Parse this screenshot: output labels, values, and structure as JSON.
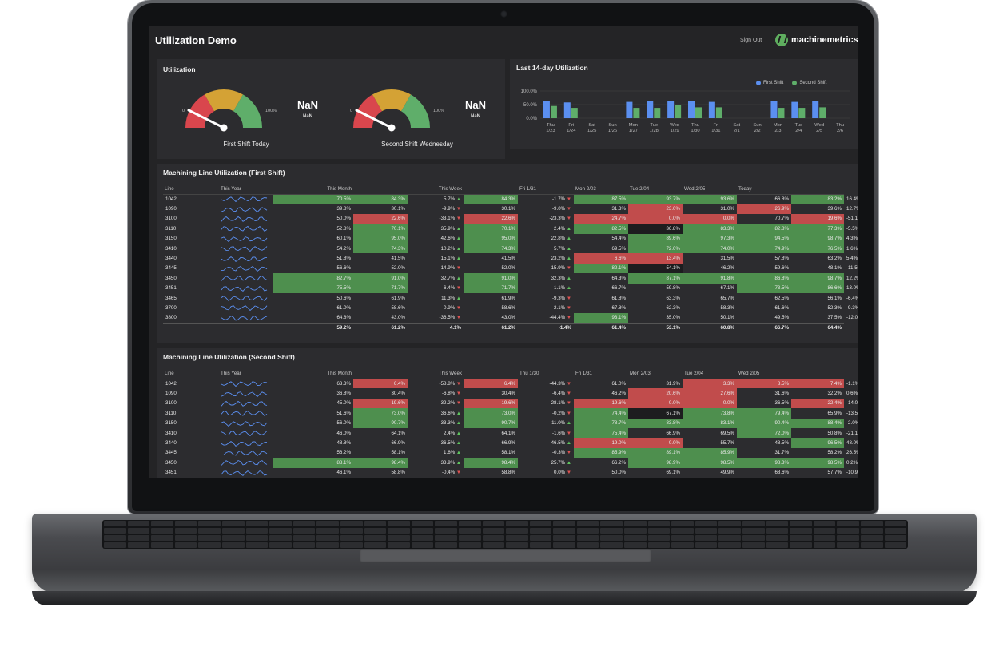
{
  "app": {
    "title": "Utilization Demo",
    "sign_out": "Sign Out",
    "brand": "machinemetrics"
  },
  "gauges": {
    "title": "Utilization",
    "min_label": "0",
    "max_label": "100%",
    "items": [
      {
        "label": "First Shift Today",
        "value": "NaN",
        "sub": "NaN"
      },
      {
        "label": "Second Shift Wednesday",
        "value": "NaN",
        "sub": "NaN"
      }
    ],
    "colors": {
      "low": "#d9464d",
      "mid": "#d4a235",
      "high": "#5fae6a"
    }
  },
  "chart_data": {
    "type": "bar",
    "title": "Last 14-day Utilization",
    "y_ticks": [
      "100.0%",
      "50.0%",
      "0.0%"
    ],
    "ylim": [
      0,
      100
    ],
    "legend": "top-right",
    "categories": [
      [
        "Thu",
        "1/23"
      ],
      [
        "Fri",
        "1/24"
      ],
      [
        "Sat",
        "1/25"
      ],
      [
        "Sun",
        "1/26"
      ],
      [
        "Mon",
        "1/27"
      ],
      [
        "Tue",
        "1/28"
      ],
      [
        "Wed",
        "1/29"
      ],
      [
        "Thu",
        "1/30"
      ],
      [
        "Fri",
        "1/31"
      ],
      [
        "Sat",
        "2/1"
      ],
      [
        "Sun",
        "2/2"
      ],
      [
        "Mon",
        "2/3"
      ],
      [
        "Tue",
        "2/4"
      ],
      [
        "Wed",
        "2/5"
      ],
      [
        "Thu",
        "2/6"
      ]
    ],
    "series": [
      {
        "name": "First Shift",
        "color": "#5b8ff0",
        "values": [
          62,
          58,
          0,
          0,
          60,
          62,
          62,
          64,
          60,
          0,
          0,
          62,
          60,
          62,
          0
        ]
      },
      {
        "name": "Second Shift",
        "color": "#5fae6a",
        "values": [
          45,
          38,
          0,
          0,
          38,
          38,
          48,
          40,
          40,
          0,
          0,
          38,
          38,
          40,
          0
        ]
      }
    ]
  },
  "first": {
    "title": "Machining Line Utilization (First Shift)",
    "headers": [
      "Line",
      "This Year",
      "This Month",
      "",
      "This Week",
      "",
      "Fri 1/31",
      "Mon 2/03",
      "Tue 2/04",
      "Wed 2/05",
      "Today",
      ""
    ],
    "rows": [
      {
        "line": "1042",
        "year": "70.5%",
        "yc": "g",
        "month": "84.3%",
        "mc": "g",
        "mdelta": "5.7%",
        "md": "up",
        "week": "84.3%",
        "wc": "g",
        "wdelta": "-1.7%",
        "wd": "dn",
        "d1": "87.5%",
        "c1": "g",
        "d2": "93.7%",
        "c2": "g",
        "d3": "93.6%",
        "c3": "g",
        "d4": "66.8%",
        "c4": "",
        "today": "83.2%",
        "tc": "g",
        "tdelta": "16.4%",
        "td": "up"
      },
      {
        "line": "1090",
        "year": "39.8%",
        "yc": "",
        "month": "30.1%",
        "mc": "",
        "mdelta": "-9.9%",
        "md": "dn",
        "week": "30.1%",
        "wc": "",
        "wdelta": "-9.0%",
        "wd": "dn",
        "d1": "31.3%",
        "c1": "",
        "d2": "23.0%",
        "c2": "r",
        "d3": "31.0%",
        "c3": "",
        "d4": "26.9%",
        "c4": "r",
        "today": "39.6%",
        "tc": "",
        "tdelta": "12.7%",
        "td": "up"
      },
      {
        "line": "3100",
        "year": "50.0%",
        "yc": "",
        "month": "22.6%",
        "mc": "r",
        "mdelta": "-33.1%",
        "md": "dn",
        "week": "22.6%",
        "wc": "r",
        "wdelta": "-23.3%",
        "wd": "dn",
        "d1": "24.7%",
        "c1": "r",
        "d2": "0.0%",
        "c2": "r",
        "d3": "0.0%",
        "c3": "r",
        "d4": "70.7%",
        "c4": "",
        "today": "19.6%",
        "tc": "r",
        "tdelta": "-51.1%",
        "td": "dn"
      },
      {
        "line": "3110",
        "year": "52.8%",
        "yc": "",
        "month": "70.1%",
        "mc": "g",
        "mdelta": "35.9%",
        "md": "up",
        "week": "70.1%",
        "wc": "g",
        "wdelta": "2.4%",
        "wd": "up",
        "d1": "82.5%",
        "c1": "g",
        "d2": "36.8%",
        "c2": "k",
        "d3": "83.3%",
        "c3": "g",
        "d4": "82.8%",
        "c4": "g",
        "today": "77.3%",
        "tc": "g",
        "tdelta": "-5.5%",
        "td": "dn"
      },
      {
        "line": "3150",
        "year": "60.1%",
        "yc": "",
        "month": "95.0%",
        "mc": "g",
        "mdelta": "42.6%",
        "md": "up",
        "week": "95.0%",
        "wc": "g",
        "wdelta": "22.8%",
        "wd": "up",
        "d1": "54.4%",
        "c1": "",
        "d2": "89.6%",
        "c2": "g",
        "d3": "97.3%",
        "c3": "g",
        "d4": "94.5%",
        "c4": "g",
        "today": "98.7%",
        "tc": "g",
        "tdelta": "4.3%",
        "td": "up"
      },
      {
        "line": "3410",
        "year": "54.2%",
        "yc": "",
        "month": "74.3%",
        "mc": "g",
        "mdelta": "10.2%",
        "md": "up",
        "week": "74.3%",
        "wc": "g",
        "wdelta": "5.7%",
        "wd": "up",
        "d1": "69.5%",
        "c1": "",
        "d2": "72.0%",
        "c2": "g",
        "d3": "74.0%",
        "c3": "g",
        "d4": "74.9%",
        "c4": "g",
        "today": "76.5%",
        "tc": "g",
        "tdelta": "1.6%",
        "td": "up"
      },
      {
        "line": "3440",
        "year": "51.8%",
        "yc": "",
        "month": "41.5%",
        "mc": "",
        "mdelta": "15.1%",
        "md": "up",
        "week": "41.5%",
        "wc": "",
        "wdelta": "23.2%",
        "wd": "up",
        "d1": "6.6%",
        "c1": "r",
        "d2": "13.4%",
        "c2": "r",
        "d3": "31.5%",
        "c3": "",
        "d4": "57.8%",
        "c4": "",
        "today": "63.2%",
        "tc": "",
        "tdelta": "5.4%",
        "td": "up"
      },
      {
        "line": "3445",
        "year": "56.6%",
        "yc": "",
        "month": "52.0%",
        "mc": "",
        "mdelta": "-14.9%",
        "md": "dn",
        "week": "52.0%",
        "wc": "",
        "wdelta": "-15.9%",
        "wd": "dn",
        "d1": "82.1%",
        "c1": "g",
        "d2": "54.1%",
        "c2": "k",
        "d3": "46.2%",
        "c3": "",
        "d4": "59.6%",
        "c4": "",
        "today": "48.1%",
        "tc": "",
        "tdelta": "-11.5%",
        "td": "dn"
      },
      {
        "line": "3450",
        "year": "82.7%",
        "yc": "g",
        "month": "91.0%",
        "mc": "g",
        "mdelta": "32.7%",
        "md": "up",
        "week": "91.0%",
        "wc": "g",
        "wdelta": "32.3%",
        "wd": "up",
        "d1": "64.3%",
        "c1": "",
        "d2": "87.1%",
        "c2": "g",
        "d3": "91.8%",
        "c3": "g",
        "d4": "86.8%",
        "c4": "g",
        "today": "98.7%",
        "tc": "g",
        "tdelta": "12.2%",
        "td": "up"
      },
      {
        "line": "3451",
        "year": "75.5%",
        "yc": "g",
        "month": "71.7%",
        "mc": "g",
        "mdelta": "-6.4%",
        "md": "dn",
        "week": "71.7%",
        "wc": "g",
        "wdelta": "1.1%",
        "wd": "up",
        "d1": "66.7%",
        "c1": "",
        "d2": "59.8%",
        "c2": "",
        "d3": "67.1%",
        "c3": "",
        "d4": "73.5%",
        "c4": "g",
        "today": "86.6%",
        "tc": "g",
        "tdelta": "13.0%",
        "td": "up"
      },
      {
        "line": "3465",
        "year": "50.6%",
        "yc": "",
        "month": "61.9%",
        "mc": "",
        "mdelta": "11.3%",
        "md": "up",
        "week": "61.9%",
        "wc": "",
        "wdelta": "-9.3%",
        "wd": "dn",
        "d1": "61.8%",
        "c1": "",
        "d2": "63.3%",
        "c2": "",
        "d3": "65.7%",
        "c3": "",
        "d4": "62.5%",
        "c4": "",
        "today": "56.1%",
        "tc": "",
        "tdelta": "-6.4%",
        "td": "dn"
      },
      {
        "line": "3700",
        "year": "61.0%",
        "yc": "",
        "month": "58.6%",
        "mc": "",
        "mdelta": "-0.9%",
        "md": "dn",
        "week": "58.6%",
        "wc": "",
        "wdelta": "-2.1%",
        "wd": "dn",
        "d1": "67.8%",
        "c1": "",
        "d2": "62.3%",
        "c2": "",
        "d3": "58.3%",
        "c3": "",
        "d4": "61.6%",
        "c4": "",
        "today": "52.3%",
        "tc": "",
        "tdelta": "-9.3%",
        "td": "dn"
      },
      {
        "line": "3800",
        "year": "64.8%",
        "yc": "",
        "month": "43.0%",
        "mc": "",
        "mdelta": "-36.5%",
        "md": "dn",
        "week": "43.0%",
        "wc": "",
        "wdelta": "-44.4%",
        "wd": "dn",
        "d1": "93.1%",
        "c1": "g",
        "d2": "35.0%",
        "c2": "",
        "d3": "50.1%",
        "c3": "",
        "d4": "49.5%",
        "c4": "",
        "today": "37.5%",
        "tc": "",
        "tdelta": "-12.0%",
        "td": "dn"
      }
    ],
    "totals": {
      "year": "59.2%",
      "month": "61.2%",
      "mdelta": "4.1%",
      "week": "61.2%",
      "wdelta": "-1.4%",
      "d1": "61.4%",
      "d2": "53.1%",
      "d3": "60.8%",
      "d4": "66.7%",
      "today": "64.4%"
    }
  },
  "second": {
    "title": "Machining Line Utilization (Second Shift)",
    "headers": [
      "Line",
      "This Year",
      "This Month",
      "",
      "This Week",
      "",
      "Thu 1/30",
      "Fri 1/31",
      "Mon 2/03",
      "Tue 2/04",
      "Wed 2/05",
      ""
    ],
    "rows": [
      {
        "line": "1042",
        "year": "63.3%",
        "yc": "",
        "month": "6.4%",
        "mc": "r",
        "mdelta": "-58.8%",
        "md": "dn",
        "week": "6.4%",
        "wc": "r",
        "wdelta": "-44.3%",
        "wd": "dn",
        "d1": "61.0%",
        "c1": "",
        "d2": "31.9%",
        "c2": "",
        "d3": "3.3%",
        "c3": "r",
        "d4": "8.5%",
        "c4": "r",
        "today": "7.4%",
        "tc": "r",
        "tdelta": "-1.1%",
        "td": "dn"
      },
      {
        "line": "1090",
        "year": "36.8%",
        "yc": "",
        "month": "30.4%",
        "mc": "",
        "mdelta": "-6.8%",
        "md": "dn",
        "week": "30.4%",
        "wc": "",
        "wdelta": "-6.4%",
        "wd": "dn",
        "d1": "46.2%",
        "c1": "",
        "d2": "20.6%",
        "c2": "r",
        "d3": "27.6%",
        "c3": "r",
        "d4": "31.6%",
        "c4": "",
        "today": "32.2%",
        "tc": "",
        "tdelta": "0.6%",
        "td": "up"
      },
      {
        "line": "3100",
        "year": "45.0%",
        "yc": "",
        "month": "19.6%",
        "mc": "r",
        "mdelta": "-32.2%",
        "md": "dn",
        "week": "19.6%",
        "wc": "r",
        "wdelta": "-28.1%",
        "wd": "dn",
        "d1": "19.6%",
        "c1": "r",
        "d2": "0.0%",
        "c2": "r",
        "d3": "0.0%",
        "c3": "r",
        "d4": "36.5%",
        "c4": "",
        "today": "22.4%",
        "tc": "r",
        "tdelta": "-14.0%",
        "td": "dn"
      },
      {
        "line": "3110",
        "year": "51.6%",
        "yc": "",
        "month": "73.0%",
        "mc": "g",
        "mdelta": "36.6%",
        "md": "up",
        "week": "73.0%",
        "wc": "g",
        "wdelta": "-0.2%",
        "wd": "dn",
        "d1": "74.4%",
        "c1": "g",
        "d2": "67.1%",
        "c2": "k",
        "d3": "73.8%",
        "c3": "g",
        "d4": "79.4%",
        "c4": "g",
        "today": "65.9%",
        "tc": "",
        "tdelta": "-13.5%",
        "td": "dn"
      },
      {
        "line": "3150",
        "year": "56.0%",
        "yc": "",
        "month": "90.7%",
        "mc": "g",
        "mdelta": "33.3%",
        "md": "up",
        "week": "90.7%",
        "wc": "g",
        "wdelta": "11.0%",
        "wd": "up",
        "d1": "78.7%",
        "c1": "g",
        "d2": "83.8%",
        "c2": "g",
        "d3": "83.1%",
        "c3": "g",
        "d4": "90.4%",
        "c4": "g",
        "today": "88.4%",
        "tc": "g",
        "tdelta": "-2.0%",
        "td": "dn"
      },
      {
        "line": "3410",
        "year": "46.0%",
        "yc": "",
        "month": "64.1%",
        "mc": "",
        "mdelta": "2.4%",
        "md": "up",
        "week": "64.1%",
        "wc": "",
        "wdelta": "-1.6%",
        "wd": "dn",
        "d1": "75.4%",
        "c1": "g",
        "d2": "66.9%",
        "c2": "",
        "d3": "69.5%",
        "c3": "",
        "d4": "72.0%",
        "c4": "g",
        "today": "50.8%",
        "tc": "",
        "tdelta": "-21.1%",
        "td": "dn"
      },
      {
        "line": "3440",
        "year": "48.8%",
        "yc": "",
        "month": "66.9%",
        "mc": "",
        "mdelta": "36.5%",
        "md": "up",
        "week": "66.9%",
        "wc": "",
        "wdelta": "46.5%",
        "wd": "up",
        "d1": "19.0%",
        "c1": "r",
        "d2": "0.0%",
        "c2": "r",
        "d3": "55.7%",
        "c3": "",
        "d4": "48.5%",
        "c4": "",
        "today": "96.5%",
        "tc": "g",
        "tdelta": "48.0%",
        "td": "up"
      },
      {
        "line": "3445",
        "year": "56.2%",
        "yc": "",
        "month": "58.1%",
        "mc": "",
        "mdelta": "1.6%",
        "md": "up",
        "week": "58.1%",
        "wc": "",
        "wdelta": "-0.3%",
        "wd": "dn",
        "d1": "85.9%",
        "c1": "g",
        "d2": "89.1%",
        "c2": "g",
        "d3": "85.9%",
        "c3": "g",
        "d4": "31.7%",
        "c4": "",
        "today": "58.2%",
        "tc": "",
        "tdelta": "26.5%",
        "td": "up"
      },
      {
        "line": "3450",
        "year": "88.1%",
        "yc": "g",
        "month": "98.4%",
        "mc": "g",
        "mdelta": "33.9%",
        "md": "up",
        "week": "98.4%",
        "wc": "g",
        "wdelta": "25.7%",
        "wd": "up",
        "d1": "66.2%",
        "c1": "",
        "d2": "98.9%",
        "c2": "g",
        "d3": "98.5%",
        "c3": "g",
        "d4": "98.3%",
        "c4": "g",
        "today": "98.5%",
        "tc": "g",
        "tdelta": "0.2%",
        "td": "up"
      },
      {
        "line": "3451",
        "year": "46.1%",
        "yc": "",
        "month": "58.8%",
        "mc": "",
        "mdelta": "-0.4%",
        "md": "dn",
        "week": "58.8%",
        "wc": "",
        "wdelta": "0.0%",
        "wd": "dn",
        "d1": "50.0%",
        "c1": "",
        "d2": "69.1%",
        "c2": "",
        "d3": "49.9%",
        "c3": "",
        "d4": "68.6%",
        "c4": "",
        "today": "57.7%",
        "tc": "",
        "tdelta": "-10.9%",
        "td": "dn"
      }
    ]
  },
  "arrows": {
    "up": "▲",
    "dn": "▼"
  }
}
